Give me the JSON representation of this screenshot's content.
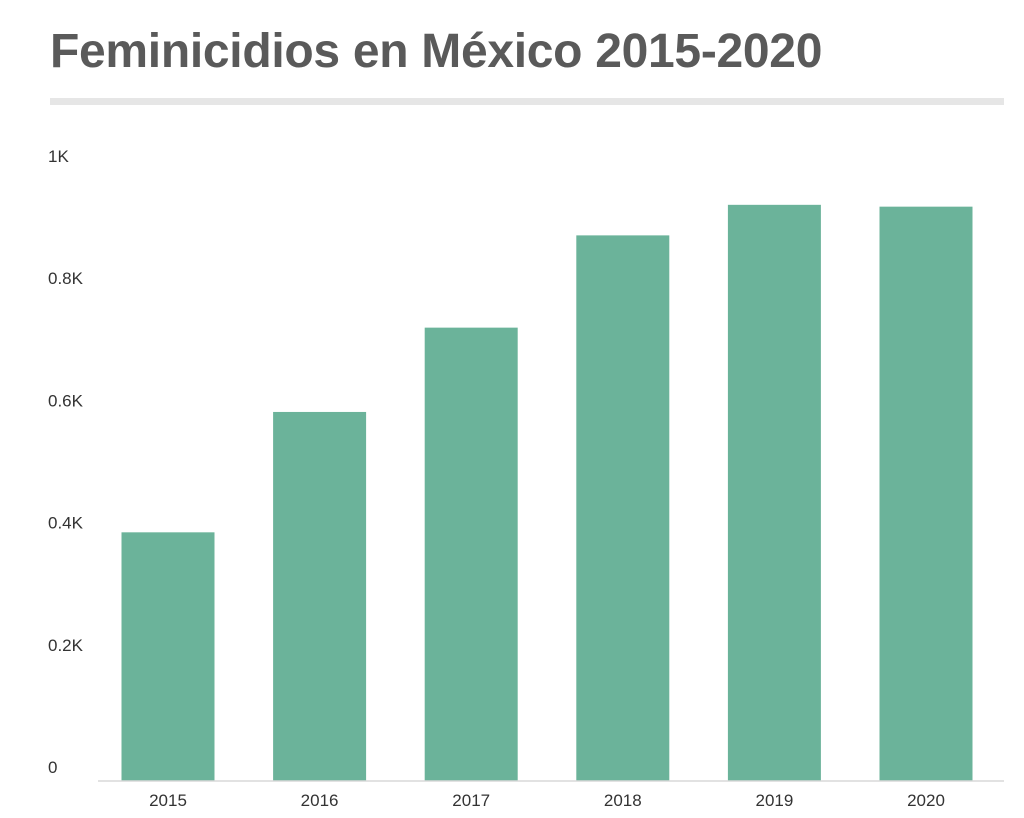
{
  "chart_data": {
    "type": "bar",
    "title": "Feminicidios en México 2015-2020",
    "xlabel": "",
    "ylabel": "",
    "categories": [
      "2015",
      "2016",
      "2017",
      "2018",
      "2019",
      "2020"
    ],
    "values": [
      407,
      604,
      742,
      893,
      943,
      940
    ],
    "ylim": [
      0,
      1000
    ],
    "yticks": [
      0,
      200,
      400,
      600,
      800,
      1000
    ],
    "ytick_labels": [
      "0",
      "0.2K",
      "0.4K",
      "0.6K",
      "0.8K",
      "1K"
    ],
    "bar_color": "#6bb39a",
    "grid": false,
    "legend": "none"
  }
}
